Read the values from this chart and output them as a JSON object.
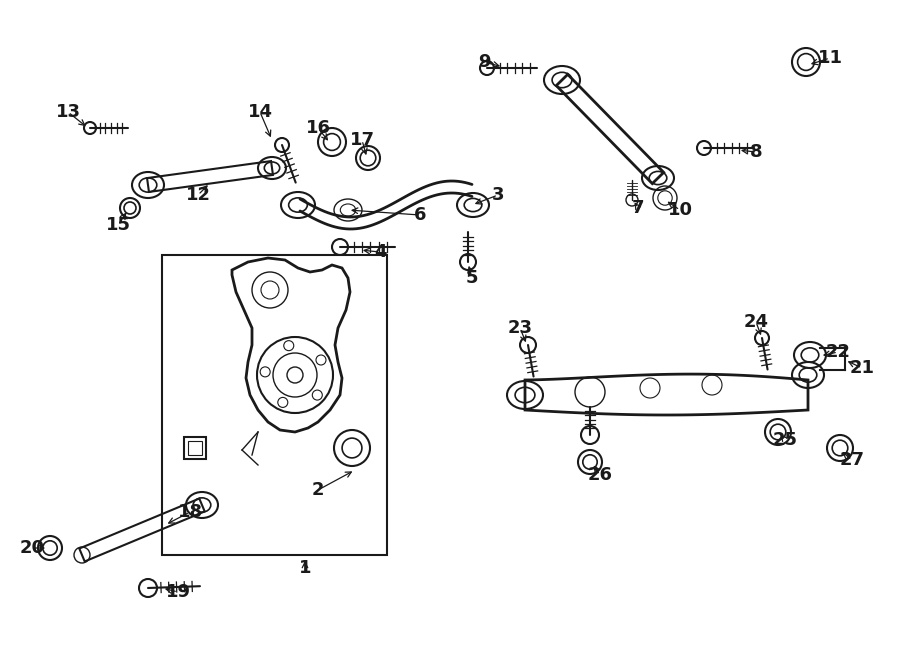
{
  "background_color": "#ffffff",
  "fig_width": 9.0,
  "fig_height": 6.62,
  "dpi": 100,
  "line_color": "#1a1a1a",
  "label_fontsize": 13,
  "label_bold": true
}
